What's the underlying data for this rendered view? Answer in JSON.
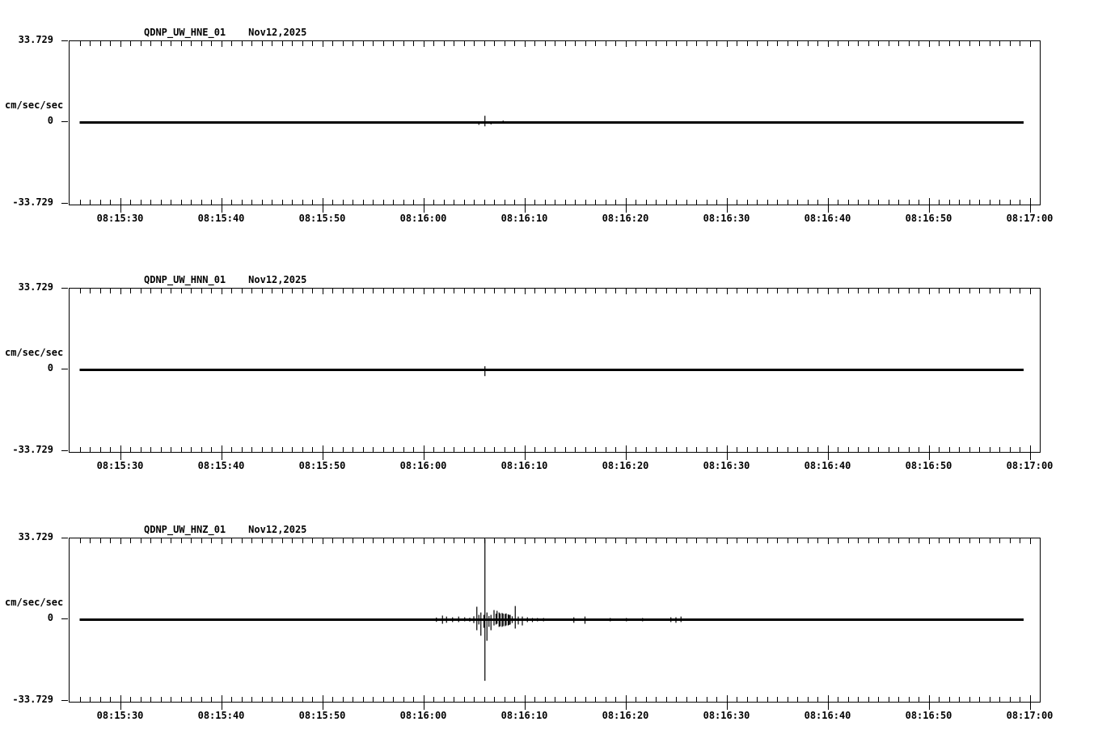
{
  "page": {
    "background": "#ffffff",
    "ink": "#000000"
  },
  "yaxis": {
    "max_label": "33.729",
    "zero_label": "0",
    "min_label": "-33.729",
    "unit": "cm/sec/sec",
    "ylim": [
      -33.729,
      33.729
    ]
  },
  "xaxis": {
    "start": "08:15:25",
    "end": "08:17:01",
    "minor_tick_sec": 1,
    "major_tick_sec": 10,
    "tick_labels": [
      "08:15:30",
      "08:15:40",
      "08:15:50",
      "08:16:00",
      "08:16:10",
      "08:16:20",
      "08:16:30",
      "08:16:40",
      "08:16:50",
      "08:17:00"
    ]
  },
  "chart_data": [
    {
      "type": "line",
      "title": "QDNP_UW_HNE_01",
      "subtitle": "Nov12,2025",
      "ylabel": "cm/sec/sec",
      "ylim": [
        -33.729,
        33.729
      ],
      "x_range": [
        "08:15:25",
        "08:17:01"
      ],
      "x_ticks": [
        "08:15:30",
        "08:15:40",
        "08:15:50",
        "08:16:00",
        "08:16:10",
        "08:16:20",
        "08:16:30",
        "08:16:40",
        "08:16:50",
        "08:17:00"
      ],
      "baseline": 0,
      "trace_start": "08:15:26",
      "trace_end": "08:16:59.4",
      "events": [
        {
          "t": "08:16:01.9",
          "up": 0.2,
          "dn": 0.5
        },
        {
          "t": "08:16:04.0",
          "up": 0.4,
          "dn": 0.2
        },
        {
          "t": "08:16:05.5",
          "up": 0.3,
          "dn": 1.0
        },
        {
          "t": "08:16:06.1",
          "up": 2.8,
          "dn": 1.6
        },
        {
          "t": "08:16:06.7",
          "up": 0.3,
          "dn": 0.8
        },
        {
          "t": "08:16:07.9",
          "up": 0.8,
          "dn": 0.3
        },
        {
          "t": "08:16:10.0",
          "up": 0.3,
          "dn": 0.3
        }
      ]
    },
    {
      "type": "line",
      "title": "QDNP_UW_HNN_01",
      "subtitle": "Nov12,2025",
      "ylabel": "cm/sec/sec",
      "ylim": [
        -33.729,
        33.729
      ],
      "x_range": [
        "08:15:25",
        "08:17:01"
      ],
      "x_ticks": [
        "08:15:30",
        "08:15:40",
        "08:15:50",
        "08:16:00",
        "08:16:10",
        "08:16:20",
        "08:16:30",
        "08:16:40",
        "08:16:50",
        "08:17:00"
      ],
      "baseline": 0,
      "trace_start": "08:15:26",
      "trace_end": "08:16:59.4",
      "events": [
        {
          "t": "08:16:05.6",
          "up": 0.3,
          "dn": 0.4
        },
        {
          "t": "08:16:06.1",
          "up": 1.5,
          "dn": 2.6
        },
        {
          "t": "08:16:06.6",
          "up": 0.3,
          "dn": 0.3
        }
      ]
    },
    {
      "type": "line",
      "title": "QDNP_UW_HNZ_01",
      "subtitle": "Nov12,2025",
      "ylabel": "cm/sec/sec",
      "ylim": [
        -33.729,
        33.729
      ],
      "x_range": [
        "08:15:25",
        "08:17:01"
      ],
      "x_ticks": [
        "08:15:30",
        "08:15:40",
        "08:15:50",
        "08:16:00",
        "08:16:10",
        "08:16:20",
        "08:16:30",
        "08:16:40",
        "08:16:50",
        "08:17:00"
      ],
      "baseline": 0,
      "trace_start": "08:15:26",
      "trace_end": "08:16:59.4",
      "events": [
        {
          "t": "08:15:30.6",
          "up": 0.35,
          "dn": 0.35
        },
        {
          "t": "08:15:34.6",
          "up": 0.35,
          "dn": 0.35
        },
        {
          "t": "08:15:39.1",
          "up": 0.35,
          "dn": 0.35
        },
        {
          "t": "08:15:43.0",
          "up": 0.35,
          "dn": 0.35
        },
        {
          "t": "08:15:46.2",
          "up": 0.35,
          "dn": 0.35
        },
        {
          "t": "08:15:50.8",
          "up": 0.35,
          "dn": 0.35
        },
        {
          "t": "08:15:54.6",
          "up": 0.35,
          "dn": 0.35
        },
        {
          "t": "08:15:57.3",
          "up": 0.35,
          "dn": 0.35
        },
        {
          "t": "08:15:59.3",
          "up": 0.35,
          "dn": 0.35
        },
        {
          "t": "08:16:00.5",
          "up": 0.35,
          "dn": 0.35
        },
        {
          "t": "08:16:01.3",
          "up": 0.9,
          "dn": 0.9
        },
        {
          "t": "08:16:01.9",
          "up": 1.7,
          "dn": 1.7
        },
        {
          "t": "08:16:02.3",
          "up": 1.3,
          "dn": 1.3
        },
        {
          "t": "08:16:02.9",
          "up": 1.0,
          "dn": 1.0
        },
        {
          "t": "08:16:03.5",
          "up": 1.3,
          "dn": 1.0
        },
        {
          "t": "08:16:04.1",
          "up": 1.0,
          "dn": 0.7
        },
        {
          "t": "08:16:04.6",
          "up": 0.8,
          "dn": 0.8
        },
        {
          "t": "08:16:05.0",
          "up": 1.4,
          "dn": 1.4
        },
        {
          "t": "08:16:05.3",
          "up": 5.4,
          "dn": 4.4
        },
        {
          "t": "08:16:05.5",
          "up": 2.0,
          "dn": 2.0
        },
        {
          "t": "08:16:05.7",
          "up": 3.0,
          "dn": 6.7
        },
        {
          "t": "08:16:06.0",
          "up": 2.0,
          "dn": 3.4
        },
        {
          "t": "08:16:06.1",
          "up": 33.7,
          "dn": 25.5
        },
        {
          "t": "08:16:06.3",
          "up": 3.0,
          "dn": 8.8
        },
        {
          "t": "08:16:06.5",
          "up": 1.5,
          "dn": 3.0
        },
        {
          "t": "08:16:06.7",
          "up": 2.0,
          "dn": 4.4
        },
        {
          "t": "08:16:07.0",
          "up": 4.0,
          "dn": 2.4
        },
        {
          "t": "08:16:07.2",
          "up": 2.5,
          "dn": 2.0
        },
        {
          "t": "08:16:07.3",
          "up": 3.7,
          "dn": 1.7
        },
        {
          "t": "08:16:07.5",
          "up": 3.0,
          "dn": 3.0
        },
        {
          "t": "08:16:07.6",
          "up": 2.6,
          "dn": 2.8
        },
        {
          "t": "08:16:07.8",
          "up": 2.8,
          "dn": 3.0
        },
        {
          "t": "08:16:07.9",
          "up": 2.5,
          "dn": 2.7
        },
        {
          "t": "08:16:08.1",
          "up": 2.4,
          "dn": 2.7
        },
        {
          "t": "08:16:08.2",
          "up": 2.6,
          "dn": 2.4
        },
        {
          "t": "08:16:08.4",
          "up": 2.2,
          "dn": 2.4
        },
        {
          "t": "08:16:08.5",
          "up": 2.0,
          "dn": 2.2
        },
        {
          "t": "08:16:08.6",
          "up": 2.0,
          "dn": 2.0
        },
        {
          "t": "08:16:08.8",
          "up": 1.4,
          "dn": 1.4
        },
        {
          "t": "08:16:09.1",
          "up": 5.7,
          "dn": 3.7
        },
        {
          "t": "08:16:09.4",
          "up": 1.3,
          "dn": 2.0
        },
        {
          "t": "08:16:09.8",
          "up": 1.3,
          "dn": 2.4
        },
        {
          "t": "08:16:10.3",
          "up": 1.0,
          "dn": 1.0
        },
        {
          "t": "08:16:10.8",
          "up": 0.7,
          "dn": 1.0
        },
        {
          "t": "08:16:11.3",
          "up": 0.7,
          "dn": 0.7
        },
        {
          "t": "08:16:11.9",
          "up": 0.7,
          "dn": 0.7
        },
        {
          "t": "08:16:12.5",
          "up": 0.4,
          "dn": 0.4
        },
        {
          "t": "08:16:13.5",
          "up": 0.4,
          "dn": 0.4
        },
        {
          "t": "08:16:14.9",
          "up": 1.0,
          "dn": 1.3
        },
        {
          "t": "08:16:16.0",
          "up": 1.3,
          "dn": 1.7
        },
        {
          "t": "08:16:17.3",
          "up": 0.4,
          "dn": 0.4
        },
        {
          "t": "08:16:18.5",
          "up": 0.7,
          "dn": 0.7
        },
        {
          "t": "08:16:19.1",
          "up": 0.4,
          "dn": 0.4
        },
        {
          "t": "08:16:20.1",
          "up": 0.7,
          "dn": 0.7
        },
        {
          "t": "08:16:21.7",
          "up": 0.7,
          "dn": 0.7
        },
        {
          "t": "08:16:23.3",
          "up": 0.4,
          "dn": 0.4
        },
        {
          "t": "08:16:24.5",
          "up": 1.0,
          "dn": 1.0
        },
        {
          "t": "08:16:25.0",
          "up": 1.0,
          "dn": 1.3
        },
        {
          "t": "08:16:25.5",
          "up": 1.3,
          "dn": 1.0
        }
      ]
    }
  ]
}
